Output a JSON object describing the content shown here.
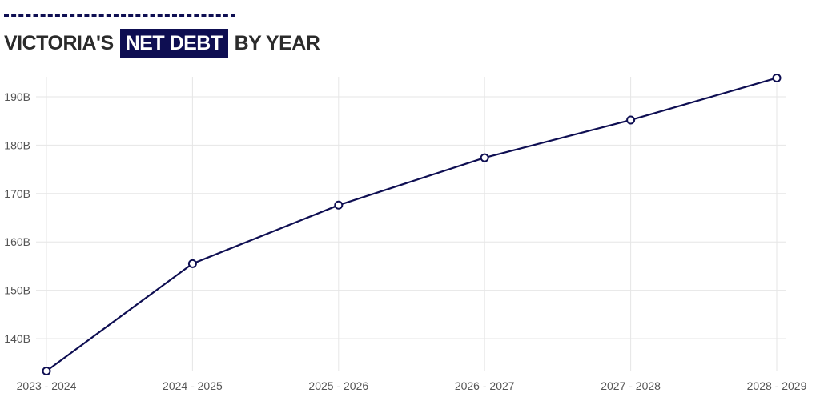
{
  "title": {
    "prefix": "VICTORIA'S",
    "highlight": "NET DEBT",
    "suffix": "BY YEAR"
  },
  "colors": {
    "accent": "#0e0e52",
    "grid": "#e6e6e6",
    "text": "#2b2b2b"
  },
  "chart_data": {
    "type": "line",
    "categories": [
      "2023 - 2024",
      "2024 - 2025",
      "2025 - 2026",
      "2026 - 2027",
      "2027 - 2028",
      "2028 - 2029"
    ],
    "series": [
      {
        "values": [
          133.3,
          155.5,
          167.6,
          177.4,
          185.2,
          193.9
        ]
      }
    ],
    "y_ticks": [
      140,
      150,
      160,
      170,
      180,
      190
    ],
    "y_tick_labels": [
      "140B",
      "150B",
      "160B",
      "170B",
      "180B",
      "190B"
    ],
    "ylim": [
      133.3,
      197.9
    ],
    "grid": true,
    "markers": "open-circle"
  }
}
